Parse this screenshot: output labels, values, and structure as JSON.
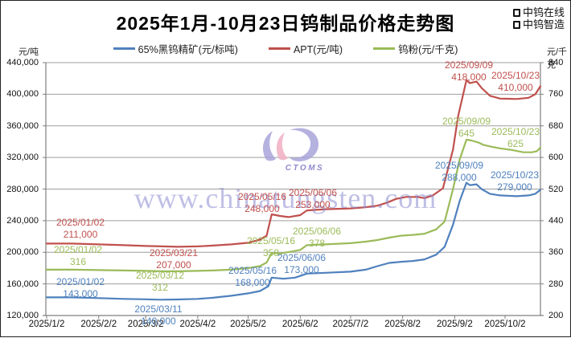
{
  "title": "2025年1月-10月23日钨制品价格走势图",
  "brand": {
    "line1": "中钨在线",
    "line2": "中钨智造"
  },
  "watermark": {
    "url_text": "www.chinatungsten.com",
    "logo_text": "CTOMS"
  },
  "legend": [
    {
      "label": "65%黑钨精矿(元/标吨)",
      "color": "#4f81bd"
    },
    {
      "label": "APT(元/吨)",
      "color": "#c0504d"
    },
    {
      "label": "钨粉(元/千克)",
      "color": "#9bbb59"
    }
  ],
  "axes": {
    "left": {
      "unit": "元/吨",
      "ticks": [
        "440,000",
        "400,000",
        "360,000",
        "320,000",
        "280,000",
        "240,000",
        "200,000",
        "160,000",
        "120,000"
      ]
    },
    "right": {
      "unit": "元/千克",
      "ticks": [
        "840",
        "760",
        "680",
        "600",
        "520",
        "440",
        "360",
        "280",
        "200"
      ]
    },
    "x": {
      "ticks": [
        "2025/1/2",
        "2025/2/2",
        "2025/3/2",
        "2025/4/2",
        "2025/5/2",
        "2025/6/2",
        "2025/7/2",
        "2025/8/2",
        "2025/9/2",
        "2025/10/2"
      ]
    }
  },
  "chart_data": {
    "type": "line",
    "title": "2025年1月-10月23日钨制品价格走势图",
    "x_axis": {
      "labels": [
        "2025/1/2",
        "2025/2/2",
        "2025/3/2",
        "2025/4/2",
        "2025/5/2",
        "2025/6/2",
        "2025/7/2",
        "2025/8/2",
        "2025/9/2",
        "2025/10/2"
      ]
    },
    "y_axis_left": {
      "unit": "元/吨",
      "range": [
        120000,
        440000
      ],
      "tick_step": 40000,
      "grid": true
    },
    "y_axis_right": {
      "unit": "元/千克",
      "range": [
        200,
        840
      ],
      "tick_step": 80
    },
    "legend_position": "top",
    "series": [
      {
        "name": "65%黑钨精矿(元/标吨)",
        "axis": "left",
        "color": "#4f81bd",
        "points": [
          [
            "2025/01/02",
            143000
          ],
          [
            "2025/01/17",
            143000
          ],
          [
            "2025/02/02",
            142000
          ],
          [
            "2025/02/17",
            141000
          ],
          [
            "2025/03/02",
            140500
          ],
          [
            "2025/03/11",
            140000
          ],
          [
            "2025/03/21",
            140300
          ],
          [
            "2025/04/02",
            141000
          ],
          [
            "2025/04/11",
            142500
          ],
          [
            "2025/04/22",
            145000
          ],
          [
            "2025/05/02",
            148000
          ],
          [
            "2025/05/09",
            151000
          ],
          [
            "2025/05/14",
            157000
          ],
          [
            "2025/05/16",
            168000
          ],
          [
            "2025/05/23",
            166500
          ],
          [
            "2025/05/30",
            168000
          ],
          [
            "2025/06/06",
            173000
          ],
          [
            "2025/06/17",
            174000
          ],
          [
            "2025/07/02",
            175500
          ],
          [
            "2025/07/11",
            178000
          ],
          [
            "2025/07/18",
            182500
          ],
          [
            "2025/07/25",
            186500
          ],
          [
            "2025/08/01",
            188000
          ],
          [
            "2025/08/08",
            189000
          ],
          [
            "2025/08/15",
            191000
          ],
          [
            "2025/08/22",
            197000
          ],
          [
            "2025/08/27",
            207000
          ],
          [
            "2025/09/01",
            235000
          ],
          [
            "2025/09/05",
            265000
          ],
          [
            "2025/09/09",
            288000
          ],
          [
            "2025/09/11",
            285000
          ],
          [
            "2025/09/15",
            286000
          ],
          [
            "2025/09/18",
            280000
          ],
          [
            "2025/09/23",
            274000
          ],
          [
            "2025/09/29",
            272000
          ],
          [
            "2025/10/09",
            271000
          ],
          [
            "2025/10/16",
            272000
          ],
          [
            "2025/10/20",
            274000
          ],
          [
            "2025/10/23",
            279000
          ]
        ]
      },
      {
        "name": "APT(元/吨)",
        "axis": "left",
        "color": "#c0504d",
        "points": [
          [
            "2025/01/02",
            211000
          ],
          [
            "2025/01/17",
            211000
          ],
          [
            "2025/02/02",
            210000
          ],
          [
            "2025/02/17",
            209000
          ],
          [
            "2025/03/02",
            208000
          ],
          [
            "2025/03/12",
            207500
          ],
          [
            "2025/03/21",
            207000
          ],
          [
            "2025/04/02",
            207500
          ],
          [
            "2025/04/11",
            208500
          ],
          [
            "2025/04/22",
            210000
          ],
          [
            "2025/05/02",
            212000
          ],
          [
            "2025/05/09",
            216000
          ],
          [
            "2025/05/13",
            221000
          ],
          [
            "2025/05/16",
            248000
          ],
          [
            "2025/05/21",
            246000
          ],
          [
            "2025/05/26",
            244500
          ],
          [
            "2025/06/02",
            247000
          ],
          [
            "2025/06/06",
            253000
          ],
          [
            "2025/06/17",
            254500
          ],
          [
            "2025/07/02",
            255500
          ],
          [
            "2025/07/11",
            257000
          ],
          [
            "2025/07/18",
            259000
          ],
          [
            "2025/07/24",
            263000
          ],
          [
            "2025/07/29",
            267500
          ],
          [
            "2025/08/04",
            270000
          ],
          [
            "2025/08/11",
            270000
          ],
          [
            "2025/08/15",
            268500
          ],
          [
            "2025/08/20",
            272000
          ],
          [
            "2025/08/26",
            281000
          ],
          [
            "2025/09/01",
            330000
          ],
          [
            "2025/09/04",
            372000
          ],
          [
            "2025/09/09",
            418000
          ],
          [
            "2025/09/11",
            414000
          ],
          [
            "2025/09/15",
            416000
          ],
          [
            "2025/09/18",
            408000
          ],
          [
            "2025/09/23",
            398000
          ],
          [
            "2025/09/29",
            394500
          ],
          [
            "2025/10/09",
            394000
          ],
          [
            "2025/10/16",
            395500
          ],
          [
            "2025/10/20",
            400000
          ],
          [
            "2025/10/23",
            410000
          ]
        ]
      },
      {
        "name": "钨粉(元/千克)",
        "axis": "right",
        "color": "#9bbb59",
        "points": [
          [
            "2025/01/02",
            316
          ],
          [
            "2025/01/17",
            316
          ],
          [
            "2025/02/02",
            315
          ],
          [
            "2025/02/17",
            314
          ],
          [
            "2025/03/02",
            313
          ],
          [
            "2025/03/12",
            312
          ],
          [
            "2025/03/21",
            312
          ],
          [
            "2025/04/02",
            313
          ],
          [
            "2025/04/11",
            314
          ],
          [
            "2025/04/22",
            316
          ],
          [
            "2025/05/02",
            320
          ],
          [
            "2025/05/09",
            325
          ],
          [
            "2025/05/13",
            334
          ],
          [
            "2025/05/16",
            358
          ],
          [
            "2025/05/21",
            357
          ],
          [
            "2025/05/28",
            362
          ],
          [
            "2025/06/02",
            366
          ],
          [
            "2025/06/06",
            378
          ],
          [
            "2025/06/17",
            380
          ],
          [
            "2025/07/02",
            383
          ],
          [
            "2025/07/11",
            387
          ],
          [
            "2025/07/18",
            391
          ],
          [
            "2025/07/25",
            397
          ],
          [
            "2025/08/01",
            402
          ],
          [
            "2025/08/08",
            404
          ],
          [
            "2025/08/15",
            407
          ],
          [
            "2025/08/22",
            418
          ],
          [
            "2025/08/27",
            438
          ],
          [
            "2025/09/01",
            520
          ],
          [
            "2025/09/05",
            595
          ],
          [
            "2025/09/09",
            645
          ],
          [
            "2025/09/12",
            643
          ],
          [
            "2025/09/16",
            638
          ],
          [
            "2025/09/19",
            632
          ],
          [
            "2025/09/24",
            627
          ],
          [
            "2025/09/29",
            623
          ],
          [
            "2025/10/06",
            619
          ],
          [
            "2025/10/13",
            613
          ],
          [
            "2025/10/18",
            613
          ],
          [
            "2025/10/21",
            616
          ],
          [
            "2025/10/23",
            625
          ]
        ]
      }
    ],
    "annotations": [
      {
        "series": 1,
        "date": "2025/01/02",
        "value": "211,000"
      },
      {
        "series": 1,
        "date": "2025/03/21",
        "value": "207,000"
      },
      {
        "series": 1,
        "date": "2025/05/16",
        "value": "248,000"
      },
      {
        "series": 1,
        "date": "2025/06/06",
        "value": "253,000"
      },
      {
        "series": 1,
        "date": "2025/09/09",
        "value": "418,000"
      },
      {
        "series": 1,
        "date": "2025/10/23",
        "value": "410,000"
      },
      {
        "series": 2,
        "date": "2025/01/02",
        "value": "316"
      },
      {
        "series": 2,
        "date": "2025/03/12",
        "value": "312"
      },
      {
        "series": 2,
        "date": "2025/05/16",
        "value": "358"
      },
      {
        "series": 2,
        "date": "2025/06/06",
        "value": "378"
      },
      {
        "series": 2,
        "date": "2025/09/09",
        "value": "645"
      },
      {
        "series": 2,
        "date": "2025/10/23",
        "value": "625"
      },
      {
        "series": 0,
        "date": "2025/01/02",
        "value": "143,000"
      },
      {
        "series": 0,
        "date": "2025/03/11",
        "value": "140,000"
      },
      {
        "series": 0,
        "date": "2025/05/16",
        "value": "168,000"
      },
      {
        "series": 0,
        "date": "2025/06/06",
        "value": "173,000"
      },
      {
        "series": 0,
        "date": "2025/09/09",
        "value": "288,000"
      },
      {
        "series": 0,
        "date": "2025/10/23",
        "value": "279,000"
      }
    ]
  }
}
